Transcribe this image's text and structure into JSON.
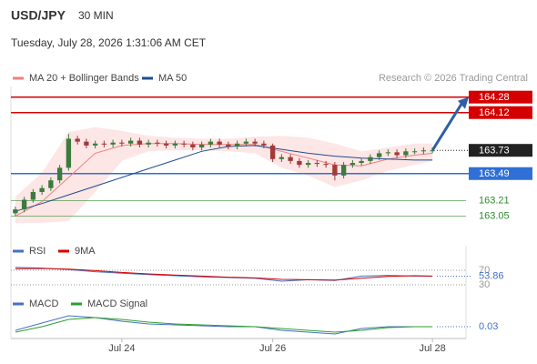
{
  "header": {
    "symbol": "USD/JPY",
    "interval": "30 MIN",
    "datetime": "Tuesday, July 28, 2026 1:31:06 AM CET"
  },
  "chart_data": [
    {
      "type": "candlestick",
      "credit": "Research © 2026 Trading Central",
      "up_color": "#3d7a3d",
      "down_color": "#a33a3a",
      "open": [
        163.08,
        163.12,
        163.22,
        163.3,
        163.34,
        163.42,
        163.55,
        163.85,
        163.82,
        163.78,
        163.8,
        163.79,
        163.81,
        163.8,
        163.83,
        163.79,
        163.81,
        163.8,
        163.78,
        163.8,
        163.79,
        163.76,
        163.79,
        163.82,
        163.79,
        163.77,
        163.8,
        163.82,
        163.8,
        163.78,
        163.64,
        163.66,
        163.62,
        163.58,
        163.6,
        163.59,
        163.58,
        163.47,
        163.58,
        163.6,
        163.62,
        163.66,
        163.7,
        163.71,
        163.68,
        163.72,
        163.72,
        163.73
      ],
      "high": [
        163.15,
        163.25,
        163.33,
        163.37,
        163.45,
        163.58,
        163.9,
        163.88,
        163.85,
        163.83,
        163.83,
        163.84,
        163.84,
        163.86,
        163.86,
        163.84,
        163.84,
        163.83,
        163.83,
        163.83,
        163.82,
        163.82,
        163.85,
        163.85,
        163.82,
        163.83,
        163.85,
        163.85,
        163.83,
        163.8,
        163.69,
        163.69,
        163.65,
        163.63,
        163.63,
        163.62,
        163.61,
        163.61,
        163.63,
        163.65,
        163.69,
        163.73,
        163.74,
        163.74,
        163.75,
        163.75,
        163.76,
        163.76
      ],
      "low": [
        163.05,
        163.09,
        163.19,
        163.27,
        163.31,
        163.39,
        163.52,
        163.79,
        163.75,
        163.75,
        163.76,
        163.76,
        163.77,
        163.77,
        163.76,
        163.76,
        163.77,
        163.75,
        163.75,
        163.76,
        163.73,
        163.73,
        163.76,
        163.76,
        163.74,
        163.74,
        163.77,
        163.77,
        163.75,
        163.61,
        163.61,
        163.59,
        163.55,
        163.55,
        163.56,
        163.55,
        163.42,
        163.44,
        163.55,
        163.57,
        163.59,
        163.63,
        163.67,
        163.65,
        163.65,
        163.69,
        163.69,
        163.7
      ],
      "close": [
        163.12,
        163.22,
        163.3,
        163.34,
        163.42,
        163.55,
        163.85,
        163.82,
        163.78,
        163.8,
        163.79,
        163.81,
        163.8,
        163.83,
        163.79,
        163.81,
        163.8,
        163.78,
        163.8,
        163.79,
        163.76,
        163.79,
        163.82,
        163.79,
        163.77,
        163.8,
        163.82,
        163.8,
        163.78,
        163.64,
        163.66,
        163.62,
        163.58,
        163.6,
        163.59,
        163.58,
        163.47,
        163.58,
        163.6,
        163.62,
        163.66,
        163.7,
        163.71,
        163.68,
        163.72,
        163.72,
        163.73,
        163.73
      ],
      "series": [
        {
          "name": "MA 20 + Bollinger Bands",
          "color": "#f08080",
          "x": [
            0,
            3,
            6,
            9,
            12,
            15,
            18,
            21,
            24,
            27,
            30,
            33,
            36,
            39,
            42,
            45,
            47
          ],
          "values": [
            163.05,
            163.2,
            163.45,
            163.7,
            163.78,
            163.8,
            163.8,
            163.79,
            163.79,
            163.79,
            163.72,
            163.65,
            163.58,
            163.57,
            163.64,
            163.68,
            163.7
          ]
        },
        {
          "name": "MA 50",
          "color": "#1f4e8c",
          "x": [
            0,
            3,
            6,
            9,
            12,
            15,
            18,
            21,
            24,
            27,
            30,
            33,
            36,
            39,
            42,
            45,
            47
          ],
          "values": [
            163.1,
            163.18,
            163.27,
            163.36,
            163.45,
            163.54,
            163.63,
            163.72,
            163.77,
            163.78,
            163.74,
            163.7,
            163.67,
            163.65,
            163.64,
            163.63,
            163.63
          ]
        }
      ],
      "band": {
        "color": "#fbd5d5",
        "x": [
          0,
          3,
          6,
          9,
          12,
          15,
          18,
          21,
          24,
          27,
          30,
          33,
          36,
          39,
          42,
          45,
          47
        ],
        "upper": [
          163.25,
          163.5,
          163.92,
          163.97,
          163.93,
          163.88,
          163.86,
          163.85,
          163.85,
          163.87,
          163.88,
          163.86,
          163.8,
          163.72,
          163.76,
          163.8,
          163.8
        ],
        "lower": [
          162.98,
          162.98,
          163.0,
          163.3,
          163.62,
          163.72,
          163.73,
          163.73,
          163.72,
          163.7,
          163.55,
          163.47,
          163.35,
          163.42,
          163.52,
          163.58,
          163.62
        ]
      },
      "levels": [
        {
          "value": 164.28,
          "color": "#d40000",
          "style": "box"
        },
        {
          "value": 164.12,
          "color": "#d40000",
          "style": "box"
        },
        {
          "value": 163.73,
          "color": "#222222",
          "style": "current"
        },
        {
          "value": 163.49,
          "color": "#2f6fd6",
          "style": "box"
        },
        {
          "value": 163.21,
          "color": "#2e8b2e",
          "style": "text"
        },
        {
          "value": 163.05,
          "color": "#2e8b2e",
          "style": "text"
        }
      ],
      "arrow_color": "#2f5fa8",
      "ylim": [
        162.98,
        164.39
      ],
      "xlim": [
        -0.5,
        47.5
      ],
      "xticks": [
        {
          "value": 12,
          "label": "Jul 24"
        },
        {
          "value": 29,
          "label": "Jul 26"
        },
        {
          "value": 47,
          "label": "Jul 28"
        }
      ]
    },
    {
      "type": "line",
      "series": [
        {
          "name": "RSI",
          "color": "#4472c4",
          "x": [
            0,
            3,
            6,
            9,
            12,
            15,
            18,
            21,
            24,
            27,
            30,
            33,
            36,
            39,
            42,
            45,
            47
          ],
          "values": [
            78,
            76,
            72,
            66,
            62,
            58,
            55,
            52,
            50,
            48,
            40,
            44,
            42,
            54,
            56,
            54,
            53.86
          ]
        },
        {
          "name": "9MA",
          "color": "#d40000",
          "x": [
            0,
            3,
            6,
            9,
            12,
            15,
            18,
            21,
            24,
            27,
            30,
            33,
            36,
            39,
            42,
            45,
            47
          ],
          "values": [
            74,
            75,
            73,
            69,
            64,
            60,
            57,
            54,
            51,
            49,
            45,
            44,
            43,
            48,
            53,
            55,
            54
          ]
        }
      ],
      "ylim": [
        0,
        100
      ],
      "yticks": [
        70,
        30
      ],
      "xlim": [
        -0.5,
        47.5
      ]
    },
    {
      "type": "line",
      "series": [
        {
          "name": "MACD",
          "color": "#4472c4",
          "x": [
            0,
            3,
            6,
            9,
            12,
            15,
            18,
            21,
            24,
            27,
            30,
            33,
            36,
            39,
            42,
            45,
            47
          ],
          "values": [
            0.01,
            0.05,
            0.09,
            0.08,
            0.06,
            0.045,
            0.04,
            0.035,
            0.03,
            0.03,
            0.01,
            0.0,
            -0.01,
            0.02,
            0.03,
            0.03,
            0.03
          ]
        },
        {
          "name": "MACD Signal",
          "color": "#2e9e2e",
          "x": [
            0,
            3,
            6,
            9,
            12,
            15,
            18,
            21,
            24,
            27,
            30,
            33,
            36,
            39,
            42,
            45,
            47
          ],
          "values": [
            0.0,
            0.03,
            0.07,
            0.08,
            0.07,
            0.055,
            0.045,
            0.04,
            0.035,
            0.03,
            0.02,
            0.01,
            0.0,
            0.01,
            0.025,
            0.03,
            0.03
          ]
        }
      ],
      "ylim": [
        -0.05,
        0.11
      ],
      "xlim": [
        -0.5,
        47.5
      ]
    }
  ]
}
